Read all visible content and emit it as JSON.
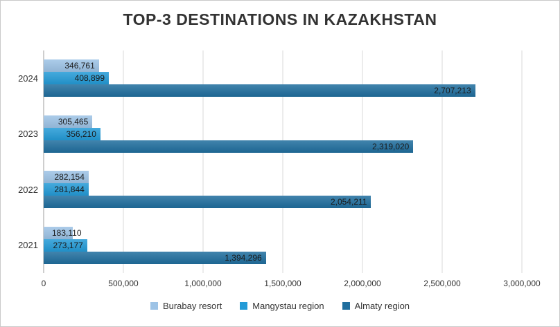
{
  "chart": {
    "title": "TOP-3 DESTINATIONS IN KAZAKHSTAN"
  },
  "colors": {
    "grid": "#d9d9d9",
    "axis": "#9e9e9e",
    "border": "#c9c9c9",
    "text": "#333333",
    "label_text": "#1a1a1a"
  },
  "chart_data": {
    "type": "bar",
    "orientation": "horizontal",
    "title": "TOP-3 DESTINATIONS IN KAZAKHSTAN",
    "categories": [
      "2024",
      "2023",
      "2022",
      "2021"
    ],
    "series": [
      {
        "name": "Burabay resort",
        "color": "#9dc3e6",
        "values": [
          346761,
          305465,
          282154,
          183110
        ]
      },
      {
        "name": "Mangystau region",
        "color": "#249bd7",
        "values": [
          408899,
          356210,
          281844,
          273177
        ]
      },
      {
        "name": "Almaty region",
        "color": "#206e9e",
        "values": [
          2707213,
          2319020,
          2054211,
          1394296
        ]
      }
    ],
    "data_labels": [
      "346,761",
      "408,899",
      "2,707,213",
      "305,465",
      "356,210",
      "2,319,020",
      "282,154",
      "281,844",
      "2,054,211",
      "183,110",
      "273,177",
      "1,394,296"
    ],
    "x_ticks": [
      "0",
      "500,000",
      "1,000,000",
      "1,500,000",
      "2,000,000",
      "2,500,000",
      "3,000,000"
    ],
    "xlim": [
      0,
      3000000
    ],
    "grid": true,
    "legend_position": "bottom",
    "xlabel": "",
    "ylabel": ""
  }
}
